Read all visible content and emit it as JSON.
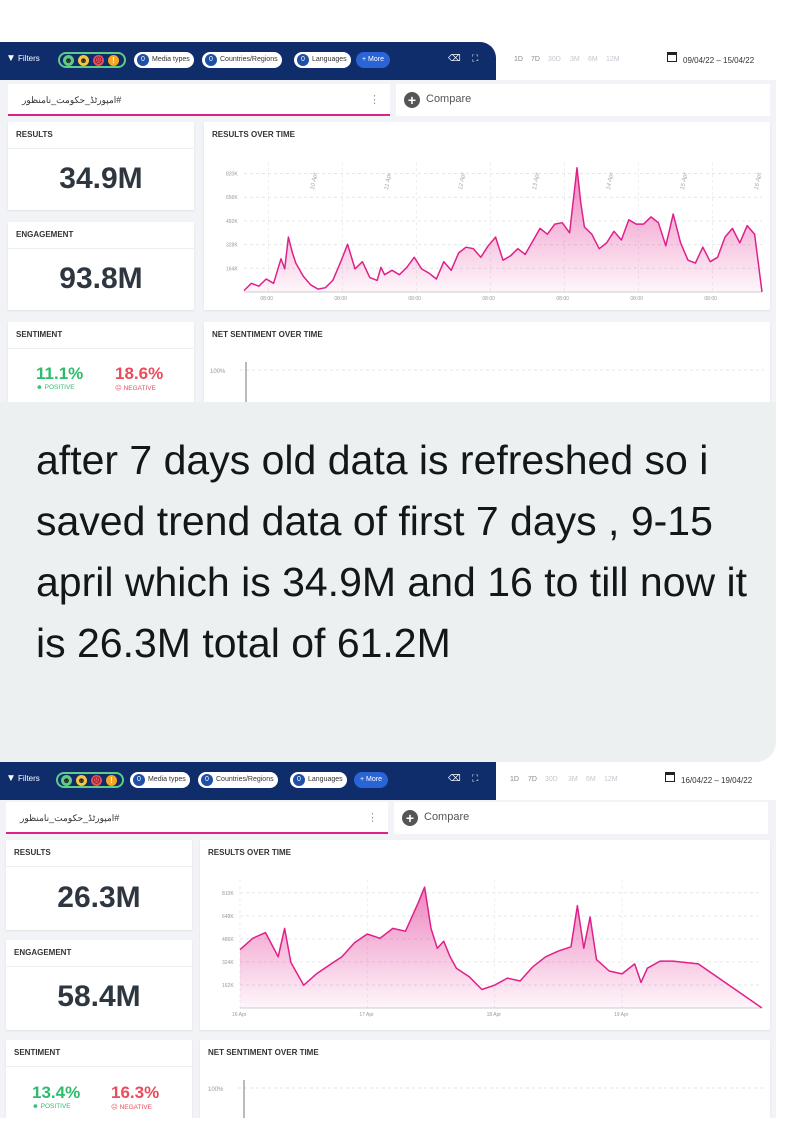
{
  "screenshot_1": {
    "filters_label": "Filters",
    "chips": {
      "media_count": "0",
      "media_label": "Media types",
      "countries_count": "0",
      "countries_label": "Countries/Regions",
      "languages_count": "0",
      "languages_label": "Languages"
    },
    "more_label": "+ More",
    "ranges": [
      "1D",
      "7D",
      "30D",
      "3M",
      "6M",
      "12M"
    ],
    "date_range": "09/04/22 – 15/04/22",
    "query": "امپورٹڈ_حکومت_نامنظور#",
    "compare_label": "Compare",
    "results_title": "RESULTS",
    "results_value": "34.9M",
    "engagement_title": "ENGAGEMENT",
    "engagement_value": "93.8M",
    "sentiment_title": "SENTIMENT",
    "positive_pct": "11.1%",
    "positive_label": "POSITIVE",
    "negative_pct": "18.6%",
    "negative_label": "NEGATIVE",
    "rot_title": "RESULTS OVER TIME",
    "net_title": "NET SENTIMENT OVER TIME",
    "net_y_tick": "100%"
  },
  "screenshot_2": {
    "filters_label": "Filters",
    "chips": {
      "media_count": "0",
      "media_label": "Media types",
      "countries_count": "0",
      "countries_label": "Countries/Regions",
      "languages_count": "0",
      "languages_label": "Languages"
    },
    "more_label": "+ More",
    "ranges": [
      "1D",
      "7D",
      "30D",
      "3M",
      "6M",
      "12M"
    ],
    "date_range": "16/04/22 – 19/04/22",
    "query": "امپورٹڈ_حکومت_نامنظور#",
    "compare_label": "Compare",
    "results_title": "RESULTS",
    "results_value": "26.3M",
    "engagement_title": "ENGAGEMENT",
    "engagement_value": "58.4M",
    "sentiment_title": "SENTIMENT",
    "positive_pct": "13.4%",
    "positive_label": "POSITIVE",
    "negative_pct": "16.3%",
    "negative_label": "NEGATIVE",
    "rot_title": "RESULTS OVER TIME",
    "net_title": "NET SENTIMENT OVER TIME",
    "net_y_tick": "100%"
  },
  "note_text": "after 7 days old data is refreshed so i saved trend data of first 7 days , 9-15 april which is 34.9M and 16 to till now it is 26.3M total of 61.2M",
  "chart_data": [
    {
      "type": "area",
      "title": "RESULTS OVER TIME",
      "y_ticks": [
        "820K",
        "656K",
        "492K",
        "328K",
        "164K"
      ],
      "x_ticks": [
        "08:00",
        "08:00",
        "08:00",
        "08:00",
        "08:00",
        "08:00",
        "08:00"
      ],
      "day_labels": [
        "10 Apr",
        "11 Apr",
        "12 Apr",
        "13 Apr",
        "14 Apr",
        "15 Apr",
        "16 Apr"
      ],
      "ylim": [
        0,
        900000
      ],
      "x_range": [
        0,
        7
      ],
      "color": "#e0208a",
      "x": [
        0,
        0.1,
        0.2,
        0.3,
        0.4,
        0.5,
        0.55,
        0.6,
        0.65,
        0.7,
        0.8,
        0.9,
        1.0,
        1.1,
        1.2,
        1.3,
        1.4,
        1.5,
        1.6,
        1.7,
        1.8,
        1.85,
        1.9,
        2.0,
        2.1,
        2.2,
        2.3,
        2.4,
        2.5,
        2.6,
        2.7,
        2.8,
        2.9,
        3.0,
        3.1,
        3.2,
        3.3,
        3.4,
        3.5,
        3.6,
        3.7,
        3.8,
        3.9,
        4.0,
        4.1,
        4.2,
        4.3,
        4.4,
        4.5,
        4.55,
        4.6,
        4.7,
        4.8,
        4.9,
        5.0,
        5.1,
        5.2,
        5.3,
        5.4,
        5.5,
        5.6,
        5.7,
        5.8,
        5.9,
        6.0,
        6.1,
        6.2,
        6.3,
        6.4,
        6.5,
        6.6,
        6.7,
        6.8,
        6.9,
        7.0
      ],
      "values": [
        10000,
        60000,
        40000,
        90000,
        60000,
        230000,
        160000,
        380000,
        280000,
        200000,
        110000,
        50000,
        20000,
        30000,
        80000,
        200000,
        330000,
        160000,
        210000,
        100000,
        80000,
        170000,
        120000,
        150000,
        120000,
        170000,
        240000,
        160000,
        130000,
        90000,
        210000,
        150000,
        270000,
        310000,
        300000,
        240000,
        320000,
        380000,
        220000,
        250000,
        300000,
        260000,
        350000,
        440000,
        400000,
        470000,
        480000,
        410000,
        860000,
        620000,
        450000,
        400000,
        300000,
        340000,
        420000,
        360000,
        500000,
        470000,
        470000,
        520000,
        480000,
        320000,
        540000,
        340000,
        220000,
        200000,
        310000,
        210000,
        240000,
        380000,
        440000,
        340000,
        460000,
        400000,
        0
      ]
    },
    {
      "type": "area",
      "title": "RESULTS OVER TIME",
      "y_ticks": [
        "810K",
        "648K",
        "486K",
        "324K",
        "162K"
      ],
      "x_ticks": [
        "16 Apr",
        "17 Apr",
        "18 Apr",
        "19 Apr"
      ],
      "ylim": [
        0,
        900000
      ],
      "x_range": [
        0,
        4.1
      ],
      "color": "#e0208a",
      "x": [
        0,
        0.1,
        0.2,
        0.3,
        0.35,
        0.4,
        0.5,
        0.6,
        0.7,
        0.8,
        0.9,
        1.0,
        1.1,
        1.2,
        1.3,
        1.4,
        1.45,
        1.5,
        1.55,
        1.6,
        1.65,
        1.7,
        1.8,
        1.9,
        2.0,
        2.1,
        2.2,
        2.3,
        2.4,
        2.5,
        2.6,
        2.65,
        2.7,
        2.75,
        2.8,
        2.9,
        3.0,
        3.1,
        3.15,
        3.2,
        3.3,
        3.4,
        3.5,
        3.6,
        4.1
      ],
      "values": [
        410000,
        490000,
        530000,
        360000,
        560000,
        320000,
        160000,
        240000,
        300000,
        360000,
        460000,
        520000,
        490000,
        560000,
        540000,
        740000,
        850000,
        560000,
        420000,
        470000,
        360000,
        280000,
        220000,
        130000,
        160000,
        210000,
        190000,
        290000,
        360000,
        400000,
        430000,
        720000,
        420000,
        640000,
        340000,
        260000,
        240000,
        310000,
        180000,
        280000,
        330000,
        330000,
        320000,
        310000,
        0
      ]
    }
  ]
}
